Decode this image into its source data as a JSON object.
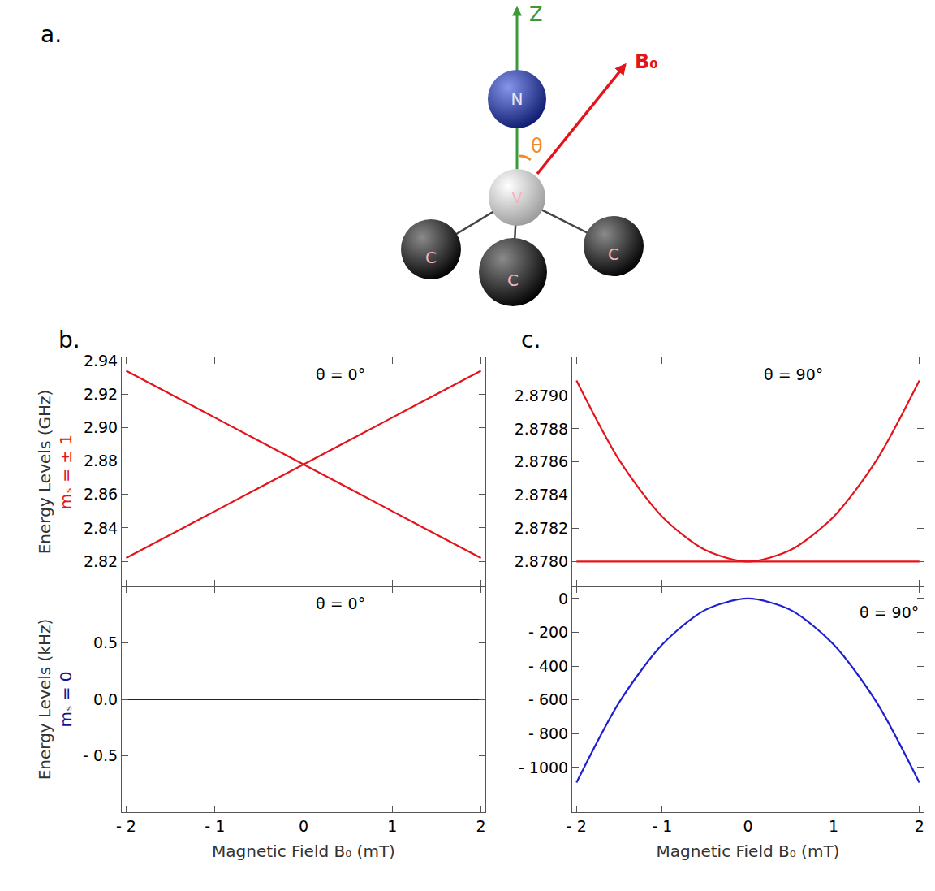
{
  "diagram": {
    "label": "a.",
    "axis_label": "Z",
    "field_label": "B₀",
    "angle_label": "θ",
    "atoms": [
      "N",
      "V",
      "C",
      "C",
      "C"
    ]
  },
  "chart_data": [
    {
      "type": "line",
      "panel": "b.",
      "ylabel": "Energy Levels (GHz)",
      "ylabel_state": "mₛ = ± 1",
      "annotation": "θ = 0°",
      "x": [
        -2,
        -1,
        0,
        1,
        2
      ],
      "series": [
        {
          "color": "#e3141b",
          "values": [
            2.822,
            2.85,
            2.878,
            2.906,
            2.934
          ]
        },
        {
          "color": "#e3141b",
          "values": [
            2.934,
            2.906,
            2.878,
            2.85,
            2.822
          ]
        }
      ],
      "xlim": [
        -2.05,
        2.05
      ],
      "xticks": [
        {
          "value": -2,
          "label": "- 2"
        },
        {
          "value": -1,
          "label": "- 1"
        },
        0,
        1,
        2
      ],
      "ylim": [
        2.805,
        2.942
      ],
      "yticks": [
        2.82,
        2.84,
        2.86,
        2.88,
        {
          "value": 2.9,
          "label": "2.90"
        },
        2.92,
        2.94
      ],
      "tick_labels": "y"
    },
    {
      "type": "line",
      "ylabel": "Energy Levels (kHz)",
      "ylabel_state": "mₛ = 0",
      "xlabel": "Magnetic Field B₀ (mT)",
      "annotation": "θ = 0°",
      "x": [
        -2,
        -1,
        0,
        1,
        2
      ],
      "series": [
        {
          "color": "#14148c",
          "values": [
            0,
            0,
            0,
            0,
            0
          ]
        }
      ],
      "xlim": [
        -2.05,
        2.05
      ],
      "xticks": [
        {
          "value": -2,
          "label": "- 2"
        },
        {
          "value": -1,
          "label": "- 1"
        },
        0,
        1,
        2
      ],
      "ylim": [
        -1,
        1
      ],
      "yticks": [
        {
          "value": -0.5,
          "label": "- 0.5"
        },
        {
          "value": 0,
          "label": "0.0"
        },
        0.5
      ]
    },
    {
      "type": "line",
      "panel": "c.",
      "annotation": "θ = 90°",
      "x": [
        -2,
        -1.5,
        -1,
        -0.5,
        0,
        0.5,
        1,
        1.5,
        2
      ],
      "series": [
        {
          "color": "#e3141b",
          "values": [
            2.878,
            2.878,
            2.878,
            2.878,
            2.878,
            2.878,
            2.878,
            2.878,
            2.878
          ]
        },
        {
          "color": "#e3141b",
          "values": [
            2.87909,
            2.87861,
            2.87827,
            2.87807,
            2.878,
            2.87807,
            2.87827,
            2.87861,
            2.87909
          ]
        }
      ],
      "xlim": [
        -2.05,
        2.05
      ],
      "xticks": [
        {
          "value": -2,
          "label": "- 2"
        },
        {
          "value": -1,
          "label": "- 1"
        },
        0,
        1,
        2
      ],
      "ylim": [
        2.87785,
        2.87923
      ],
      "yticks": [
        {
          "value": 2.878,
          "label": "2.8780"
        },
        2.8782,
        2.8784,
        2.8786,
        2.8788,
        {
          "value": 2.879,
          "label": "2.8790"
        }
      ],
      "tick_labels": "y"
    },
    {
      "type": "line",
      "xlabel": "Magnetic Field B₀ (mT)",
      "annotation": "θ = 90°",
      "x": [
        -2,
        -1.5,
        -1,
        -0.5,
        0,
        0.5,
        1,
        1.5,
        2
      ],
      "series": [
        {
          "color": "#1f1fd0",
          "values": [
            -1090,
            -613,
            -272,
            -68,
            0,
            -68,
            -272,
            -613,
            -1090
          ]
        }
      ],
      "xlim": [
        -2.05,
        2.05
      ],
      "xticks": [
        {
          "value": -2,
          "label": "- 2"
        },
        {
          "value": -1,
          "label": "- 1"
        },
        0,
        1,
        2
      ],
      "ylim": [
        -1265,
        72
      ],
      "yticks": [
        0,
        {
          "value": -200,
          "label": "- 200"
        },
        {
          "value": -400,
          "label": "- 400"
        },
        {
          "value": -600,
          "label": "- 600"
        },
        {
          "value": -800,
          "label": "- 800"
        },
        {
          "value": -1000,
          "label": "- 1000"
        }
      ]
    }
  ]
}
